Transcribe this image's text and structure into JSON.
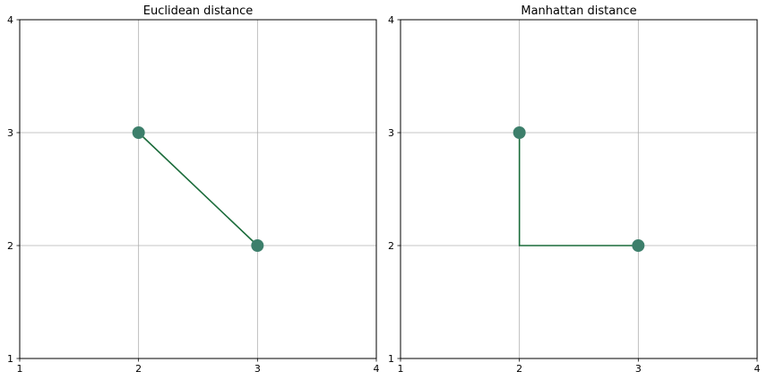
{
  "chart_data": [
    {
      "type": "line",
      "title": "Euclidean distance",
      "xlabel": "",
      "ylabel": "",
      "xlim": [
        1,
        4
      ],
      "ylim": [
        1,
        4
      ],
      "xticks": [
        1,
        2,
        3,
        4
      ],
      "yticks": [
        1,
        2,
        3,
        4
      ],
      "grid": true,
      "path": [
        {
          "x": 2,
          "y": 3
        },
        {
          "x": 3,
          "y": 2
        }
      ],
      "points": [
        {
          "x": 2,
          "y": 3
        },
        {
          "x": 3,
          "y": 2
        }
      ],
      "line_color": "#1a6b3a",
      "marker_color": "#3d7f6b"
    },
    {
      "type": "line",
      "title": "Manhattan distance",
      "xlabel": "",
      "ylabel": "",
      "xlim": [
        1,
        4
      ],
      "ylim": [
        1,
        4
      ],
      "xticks": [
        1,
        2,
        3,
        4
      ],
      "yticks": [
        1,
        2,
        3,
        4
      ],
      "grid": true,
      "path": [
        {
          "x": 2,
          "y": 3
        },
        {
          "x": 2,
          "y": 2
        },
        {
          "x": 3,
          "y": 2
        }
      ],
      "points": [
        {
          "x": 2,
          "y": 3
        },
        {
          "x": 3,
          "y": 2
        }
      ],
      "line_color": "#1a6b3a",
      "marker_color": "#3d7f6b"
    }
  ]
}
